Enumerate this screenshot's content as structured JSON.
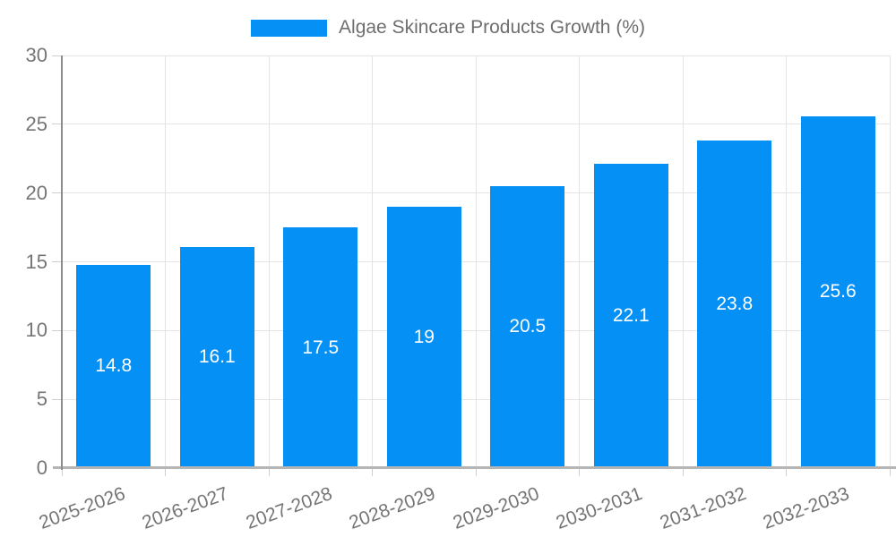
{
  "chart_data": {
    "type": "bar",
    "title": "Algae Skincare Products Growth (%)",
    "legend": [
      "Algae Skincare Products Growth (%)"
    ],
    "legend_position": "top-center",
    "categories": [
      "2025-2026",
      "2026-2027",
      "2027-2028",
      "2028-2029",
      "2029-2030",
      "2030-2031",
      "2031-2032",
      "2032-2033"
    ],
    "values": [
      14.8,
      16.1,
      17.5,
      19,
      20.5,
      22.1,
      23.8,
      25.6
    ],
    "value_labels": [
      "14.8",
      "16.1",
      "17.5",
      "19",
      "20.5",
      "22.1",
      "23.8",
      "25.6"
    ],
    "xlabel": "",
    "ylabel": "",
    "ylim": [
      0,
      30
    ],
    "yticks": [
      0,
      5,
      10,
      15,
      20,
      25,
      30
    ],
    "grid": true
  },
  "colors": {
    "bar": "#0590F5",
    "gridline": "#E4E4E4",
    "axis_line": "#8C8C8C",
    "baseline": "#B5B5B5",
    "tick": "#CFCFCF",
    "axis_label_text": "#757575",
    "legend_text": "#6E6E6E",
    "bar_label_text": "#FFFFFF"
  }
}
